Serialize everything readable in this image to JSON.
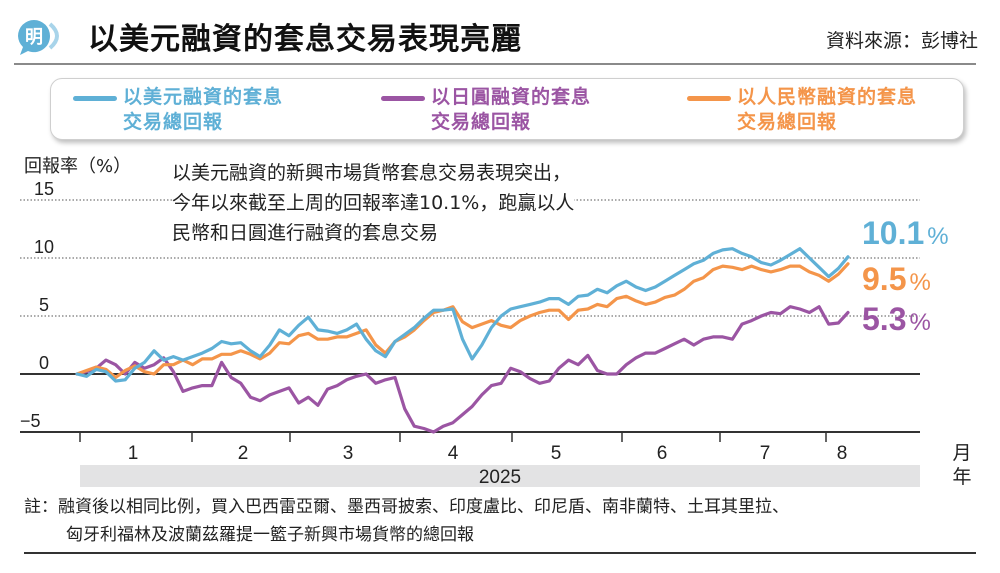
{
  "header": {
    "logo_icon": "ming-pao-speech-bubble-icon",
    "logo_text": "明",
    "title": "以美元融資的套息交易表現亮麗",
    "source": "資料來源：彭博社"
  },
  "colors": {
    "usd": "#5fb0d6",
    "jpy": "#9b55a3",
    "cny": "#f4954a",
    "logo": "#5fb0d6"
  },
  "legend": [
    {
      "key": "usd",
      "line1": "以美元融資的套息",
      "line2": "交易總回報"
    },
    {
      "key": "jpy",
      "line1": "以日圓融資的套息",
      "line2": "交易總回報"
    },
    {
      "key": "cny",
      "line1": "以人民幣融資的套息",
      "line2": "交易總回報"
    }
  ],
  "annotation": {
    "line1": "以美元融資的新興市場貨幣套息交易表現突出，",
    "line2": "今年以來截至上周的回報率達10.1%，跑贏以人",
    "line3": "民幣和日圓進行融資的套息交易"
  },
  "note": {
    "line1": "註：融資後以相同比例，買入巴西雷亞爾、墨西哥披索、印度盧比、印尼盾、南非蘭特、土耳其里拉、",
    "line2": "匈牙利福林及波蘭茲羅提一籃子新興市場貨幣的總回報"
  },
  "chart_data": {
    "type": "line",
    "title": "以美元融資的套息交易表現亮麗",
    "ylabel": "回報率（%）",
    "xlabel": "",
    "x_unit_label": "月",
    "year_unit_label": "年",
    "year": "2025",
    "ylim": [
      -5,
      15
    ],
    "yticks": [
      -5,
      0,
      5,
      10,
      15
    ],
    "ytick_labels": [
      "−5",
      "0",
      "5",
      "10",
      "15"
    ],
    "xlim_months": [
      0,
      8.0
    ],
    "xticks_months": [
      1,
      2,
      3,
      4,
      5,
      6,
      7,
      8
    ],
    "xtick_labels": [
      "1",
      "2",
      "3",
      "4",
      "5",
      "6",
      "7",
      "8"
    ],
    "grid": "dotted horizontal at 5, 10, 15; solid at 0",
    "legend_position": "top",
    "end_labels": [
      {
        "key": "usd",
        "value": "10.1",
        "unit": "%"
      },
      {
        "key": "cny",
        "value": "9.5",
        "unit": "%"
      },
      {
        "key": "jpy",
        "value": "5.3",
        "unit": "%"
      }
    ],
    "x": [
      0.0,
      0.1,
      0.2,
      0.3,
      0.4,
      0.5,
      0.6,
      0.7,
      0.8,
      0.9,
      1.0,
      1.1,
      1.2,
      1.3,
      1.4,
      1.5,
      1.6,
      1.7,
      1.8,
      1.9,
      2.0,
      2.1,
      2.2,
      2.3,
      2.4,
      2.5,
      2.6,
      2.7,
      2.8,
      2.9,
      3.0,
      3.1,
      3.2,
      3.3,
      3.4,
      3.5,
      3.6,
      3.7,
      3.8,
      3.9,
      4.0,
      4.1,
      4.2,
      4.3,
      4.4,
      4.5,
      4.6,
      4.7,
      4.8,
      4.9,
      5.0,
      5.1,
      5.2,
      5.3,
      5.4,
      5.5,
      5.6,
      5.7,
      5.8,
      5.9,
      6.0,
      6.1,
      6.2,
      6.3,
      6.4,
      6.5,
      6.6,
      6.7,
      6.8,
      6.9,
      7.0,
      7.1,
      7.2,
      7.3,
      7.4,
      7.5,
      7.6,
      7.7,
      7.8,
      7.9,
      8.0
    ],
    "series": [
      {
        "name": "以美元融資的套息交易總回報",
        "key": "usd",
        "values": [
          0.0,
          -0.2,
          0.4,
          0.2,
          -0.6,
          -0.5,
          0.5,
          1.0,
          2.0,
          1.2,
          1.5,
          1.2,
          1.5,
          1.8,
          2.2,
          2.8,
          2.6,
          2.7,
          2.0,
          1.5,
          2.5,
          3.8,
          3.3,
          4.2,
          4.9,
          3.8,
          3.7,
          3.5,
          3.8,
          4.3,
          3.0,
          2.0,
          1.5,
          2.8,
          3.4,
          4.0,
          4.8,
          5.5,
          5.5,
          5.6,
          3.0,
          1.3,
          2.5,
          4.0,
          5.0,
          5.6,
          5.8,
          6.0,
          6.2,
          6.5,
          6.5,
          6.0,
          6.7,
          6.8,
          7.3,
          7.0,
          7.6,
          8.0,
          7.5,
          7.2,
          7.5,
          8.0,
          8.5,
          9.0,
          9.5,
          9.8,
          10.4,
          10.7,
          10.8,
          10.4,
          10.1,
          9.6,
          9.4,
          9.8,
          10.3,
          10.8,
          10.0,
          9.2,
          8.4,
          9.1,
          10.1
        ]
      },
      {
        "name": "以日圓融資的套息交易總回報",
        "key": "jpy",
        "values": [
          0.0,
          0.2,
          0.5,
          1.2,
          0.8,
          0.0,
          1.0,
          0.5,
          0.8,
          1.4,
          0.2,
          -1.5,
          -1.2,
          -1.0,
          -1.0,
          1.0,
          -0.3,
          -0.8,
          -2.0,
          -2.3,
          -1.8,
          -1.5,
          -1.2,
          -2.5,
          -2.0,
          -2.7,
          -1.3,
          -1.0,
          -0.5,
          -0.2,
          0.0,
          -0.8,
          -0.5,
          -0.3,
          -3.0,
          -4.5,
          -4.7,
          -5.0,
          -4.5,
          -4.2,
          -3.5,
          -2.8,
          -1.8,
          -1.0,
          -0.8,
          0.5,
          0.2,
          -0.4,
          -0.8,
          -0.6,
          0.5,
          1.2,
          0.8,
          1.6,
          0.3,
          0.0,
          0.0,
          0.8,
          1.4,
          1.8,
          1.8,
          2.2,
          2.6,
          3.0,
          2.5,
          3.0,
          3.2,
          3.2,
          3.0,
          4.3,
          4.6,
          5.0,
          5.3,
          5.2,
          5.8,
          5.6,
          5.3,
          5.8,
          4.3,
          4.4,
          5.3
        ]
      },
      {
        "name": "以人民幣融資的套息交易總回報",
        "key": "cny",
        "values": [
          0.0,
          0.3,
          0.6,
          0.4,
          -0.3,
          0.3,
          0.7,
          0.2,
          0.0,
          0.8,
          0.8,
          1.2,
          0.8,
          1.3,
          1.3,
          1.7,
          1.7,
          2.0,
          1.7,
          1.3,
          1.8,
          2.7,
          2.6,
          3.3,
          3.5,
          3.0,
          3.0,
          3.2,
          3.2,
          3.5,
          3.8,
          2.5,
          1.8,
          2.8,
          3.2,
          3.8,
          4.6,
          5.3,
          5.5,
          5.8,
          4.5,
          4.0,
          4.3,
          4.6,
          4.2,
          4.0,
          4.6,
          5.0,
          5.3,
          5.5,
          5.5,
          4.7,
          5.5,
          5.6,
          6.0,
          5.8,
          6.5,
          6.7,
          6.3,
          6.0,
          6.2,
          6.6,
          6.8,
          7.3,
          8.0,
          8.3,
          9.0,
          9.3,
          9.2,
          9.0,
          9.3,
          9.0,
          8.8,
          9.0,
          9.3,
          9.3,
          8.8,
          8.5,
          8.0,
          8.6,
          9.5
        ]
      }
    ]
  }
}
